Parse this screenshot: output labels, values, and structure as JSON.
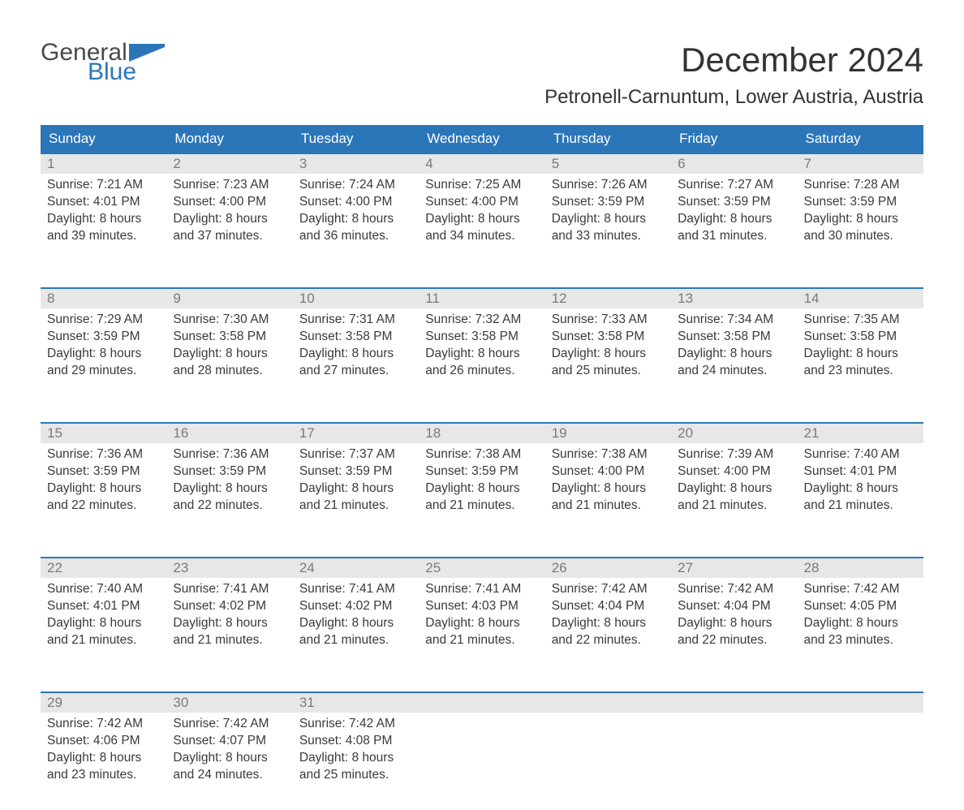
{
  "logo": {
    "line1": "General",
    "line2": "Blue",
    "flag_color": "#2b76b9"
  },
  "title": {
    "month": "December 2024",
    "location": "Petronell-Carnuntum, Lower Austria, Austria"
  },
  "colors": {
    "header_bg": "#2b76b9",
    "date_bg": "#e7e7e7",
    "week_border": "#2b76b9",
    "text": "#3a3a3a",
    "date_text": "#7a7a7a",
    "header_text": "#ffffff"
  },
  "dayheaders": [
    "Sunday",
    "Monday",
    "Tuesday",
    "Wednesday",
    "Thursday",
    "Friday",
    "Saturday"
  ],
  "weeks": [
    [
      {
        "date": "1",
        "sunrise": "Sunrise: 7:21 AM",
        "sunset": "Sunset: 4:01 PM",
        "day1": "Daylight: 8 hours",
        "day2": "and 39 minutes."
      },
      {
        "date": "2",
        "sunrise": "Sunrise: 7:23 AM",
        "sunset": "Sunset: 4:00 PM",
        "day1": "Daylight: 8 hours",
        "day2": "and 37 minutes."
      },
      {
        "date": "3",
        "sunrise": "Sunrise: 7:24 AM",
        "sunset": "Sunset: 4:00 PM",
        "day1": "Daylight: 8 hours",
        "day2": "and 36 minutes."
      },
      {
        "date": "4",
        "sunrise": "Sunrise: 7:25 AM",
        "sunset": "Sunset: 4:00 PM",
        "day1": "Daylight: 8 hours",
        "day2": "and 34 minutes."
      },
      {
        "date": "5",
        "sunrise": "Sunrise: 7:26 AM",
        "sunset": "Sunset: 3:59 PM",
        "day1": "Daylight: 8 hours",
        "day2": "and 33 minutes."
      },
      {
        "date": "6",
        "sunrise": "Sunrise: 7:27 AM",
        "sunset": "Sunset: 3:59 PM",
        "day1": "Daylight: 8 hours",
        "day2": "and 31 minutes."
      },
      {
        "date": "7",
        "sunrise": "Sunrise: 7:28 AM",
        "sunset": "Sunset: 3:59 PM",
        "day1": "Daylight: 8 hours",
        "day2": "and 30 minutes."
      }
    ],
    [
      {
        "date": "8",
        "sunrise": "Sunrise: 7:29 AM",
        "sunset": "Sunset: 3:59 PM",
        "day1": "Daylight: 8 hours",
        "day2": "and 29 minutes."
      },
      {
        "date": "9",
        "sunrise": "Sunrise: 7:30 AM",
        "sunset": "Sunset: 3:58 PM",
        "day1": "Daylight: 8 hours",
        "day2": "and 28 minutes."
      },
      {
        "date": "10",
        "sunrise": "Sunrise: 7:31 AM",
        "sunset": "Sunset: 3:58 PM",
        "day1": "Daylight: 8 hours",
        "day2": "and 27 minutes."
      },
      {
        "date": "11",
        "sunrise": "Sunrise: 7:32 AM",
        "sunset": "Sunset: 3:58 PM",
        "day1": "Daylight: 8 hours",
        "day2": "and 26 minutes."
      },
      {
        "date": "12",
        "sunrise": "Sunrise: 7:33 AM",
        "sunset": "Sunset: 3:58 PM",
        "day1": "Daylight: 8 hours",
        "day2": "and 25 minutes."
      },
      {
        "date": "13",
        "sunrise": "Sunrise: 7:34 AM",
        "sunset": "Sunset: 3:58 PM",
        "day1": "Daylight: 8 hours",
        "day2": "and 24 minutes."
      },
      {
        "date": "14",
        "sunrise": "Sunrise: 7:35 AM",
        "sunset": "Sunset: 3:58 PM",
        "day1": "Daylight: 8 hours",
        "day2": "and 23 minutes."
      }
    ],
    [
      {
        "date": "15",
        "sunrise": "Sunrise: 7:36 AM",
        "sunset": "Sunset: 3:59 PM",
        "day1": "Daylight: 8 hours",
        "day2": "and 22 minutes."
      },
      {
        "date": "16",
        "sunrise": "Sunrise: 7:36 AM",
        "sunset": "Sunset: 3:59 PM",
        "day1": "Daylight: 8 hours",
        "day2": "and 22 minutes."
      },
      {
        "date": "17",
        "sunrise": "Sunrise: 7:37 AM",
        "sunset": "Sunset: 3:59 PM",
        "day1": "Daylight: 8 hours",
        "day2": "and 21 minutes."
      },
      {
        "date": "18",
        "sunrise": "Sunrise: 7:38 AM",
        "sunset": "Sunset: 3:59 PM",
        "day1": "Daylight: 8 hours",
        "day2": "and 21 minutes."
      },
      {
        "date": "19",
        "sunrise": "Sunrise: 7:38 AM",
        "sunset": "Sunset: 4:00 PM",
        "day1": "Daylight: 8 hours",
        "day2": "and 21 minutes."
      },
      {
        "date": "20",
        "sunrise": "Sunrise: 7:39 AM",
        "sunset": "Sunset: 4:00 PM",
        "day1": "Daylight: 8 hours",
        "day2": "and 21 minutes."
      },
      {
        "date": "21",
        "sunrise": "Sunrise: 7:40 AM",
        "sunset": "Sunset: 4:01 PM",
        "day1": "Daylight: 8 hours",
        "day2": "and 21 minutes."
      }
    ],
    [
      {
        "date": "22",
        "sunrise": "Sunrise: 7:40 AM",
        "sunset": "Sunset: 4:01 PM",
        "day1": "Daylight: 8 hours",
        "day2": "and 21 minutes."
      },
      {
        "date": "23",
        "sunrise": "Sunrise: 7:41 AM",
        "sunset": "Sunset: 4:02 PM",
        "day1": "Daylight: 8 hours",
        "day2": "and 21 minutes."
      },
      {
        "date": "24",
        "sunrise": "Sunrise: 7:41 AM",
        "sunset": "Sunset: 4:02 PM",
        "day1": "Daylight: 8 hours",
        "day2": "and 21 minutes."
      },
      {
        "date": "25",
        "sunrise": "Sunrise: 7:41 AM",
        "sunset": "Sunset: 4:03 PM",
        "day1": "Daylight: 8 hours",
        "day2": "and 21 minutes."
      },
      {
        "date": "26",
        "sunrise": "Sunrise: 7:42 AM",
        "sunset": "Sunset: 4:04 PM",
        "day1": "Daylight: 8 hours",
        "day2": "and 22 minutes."
      },
      {
        "date": "27",
        "sunrise": "Sunrise: 7:42 AM",
        "sunset": "Sunset: 4:04 PM",
        "day1": "Daylight: 8 hours",
        "day2": "and 22 minutes."
      },
      {
        "date": "28",
        "sunrise": "Sunrise: 7:42 AM",
        "sunset": "Sunset: 4:05 PM",
        "day1": "Daylight: 8 hours",
        "day2": "and 23 minutes."
      }
    ],
    [
      {
        "date": "29",
        "sunrise": "Sunrise: 7:42 AM",
        "sunset": "Sunset: 4:06 PM",
        "day1": "Daylight: 8 hours",
        "day2": "and 23 minutes."
      },
      {
        "date": "30",
        "sunrise": "Sunrise: 7:42 AM",
        "sunset": "Sunset: 4:07 PM",
        "day1": "Daylight: 8 hours",
        "day2": "and 24 minutes."
      },
      {
        "date": "31",
        "sunrise": "Sunrise: 7:42 AM",
        "sunset": "Sunset: 4:08 PM",
        "day1": "Daylight: 8 hours",
        "day2": "and 25 minutes."
      },
      null,
      null,
      null,
      null
    ]
  ]
}
